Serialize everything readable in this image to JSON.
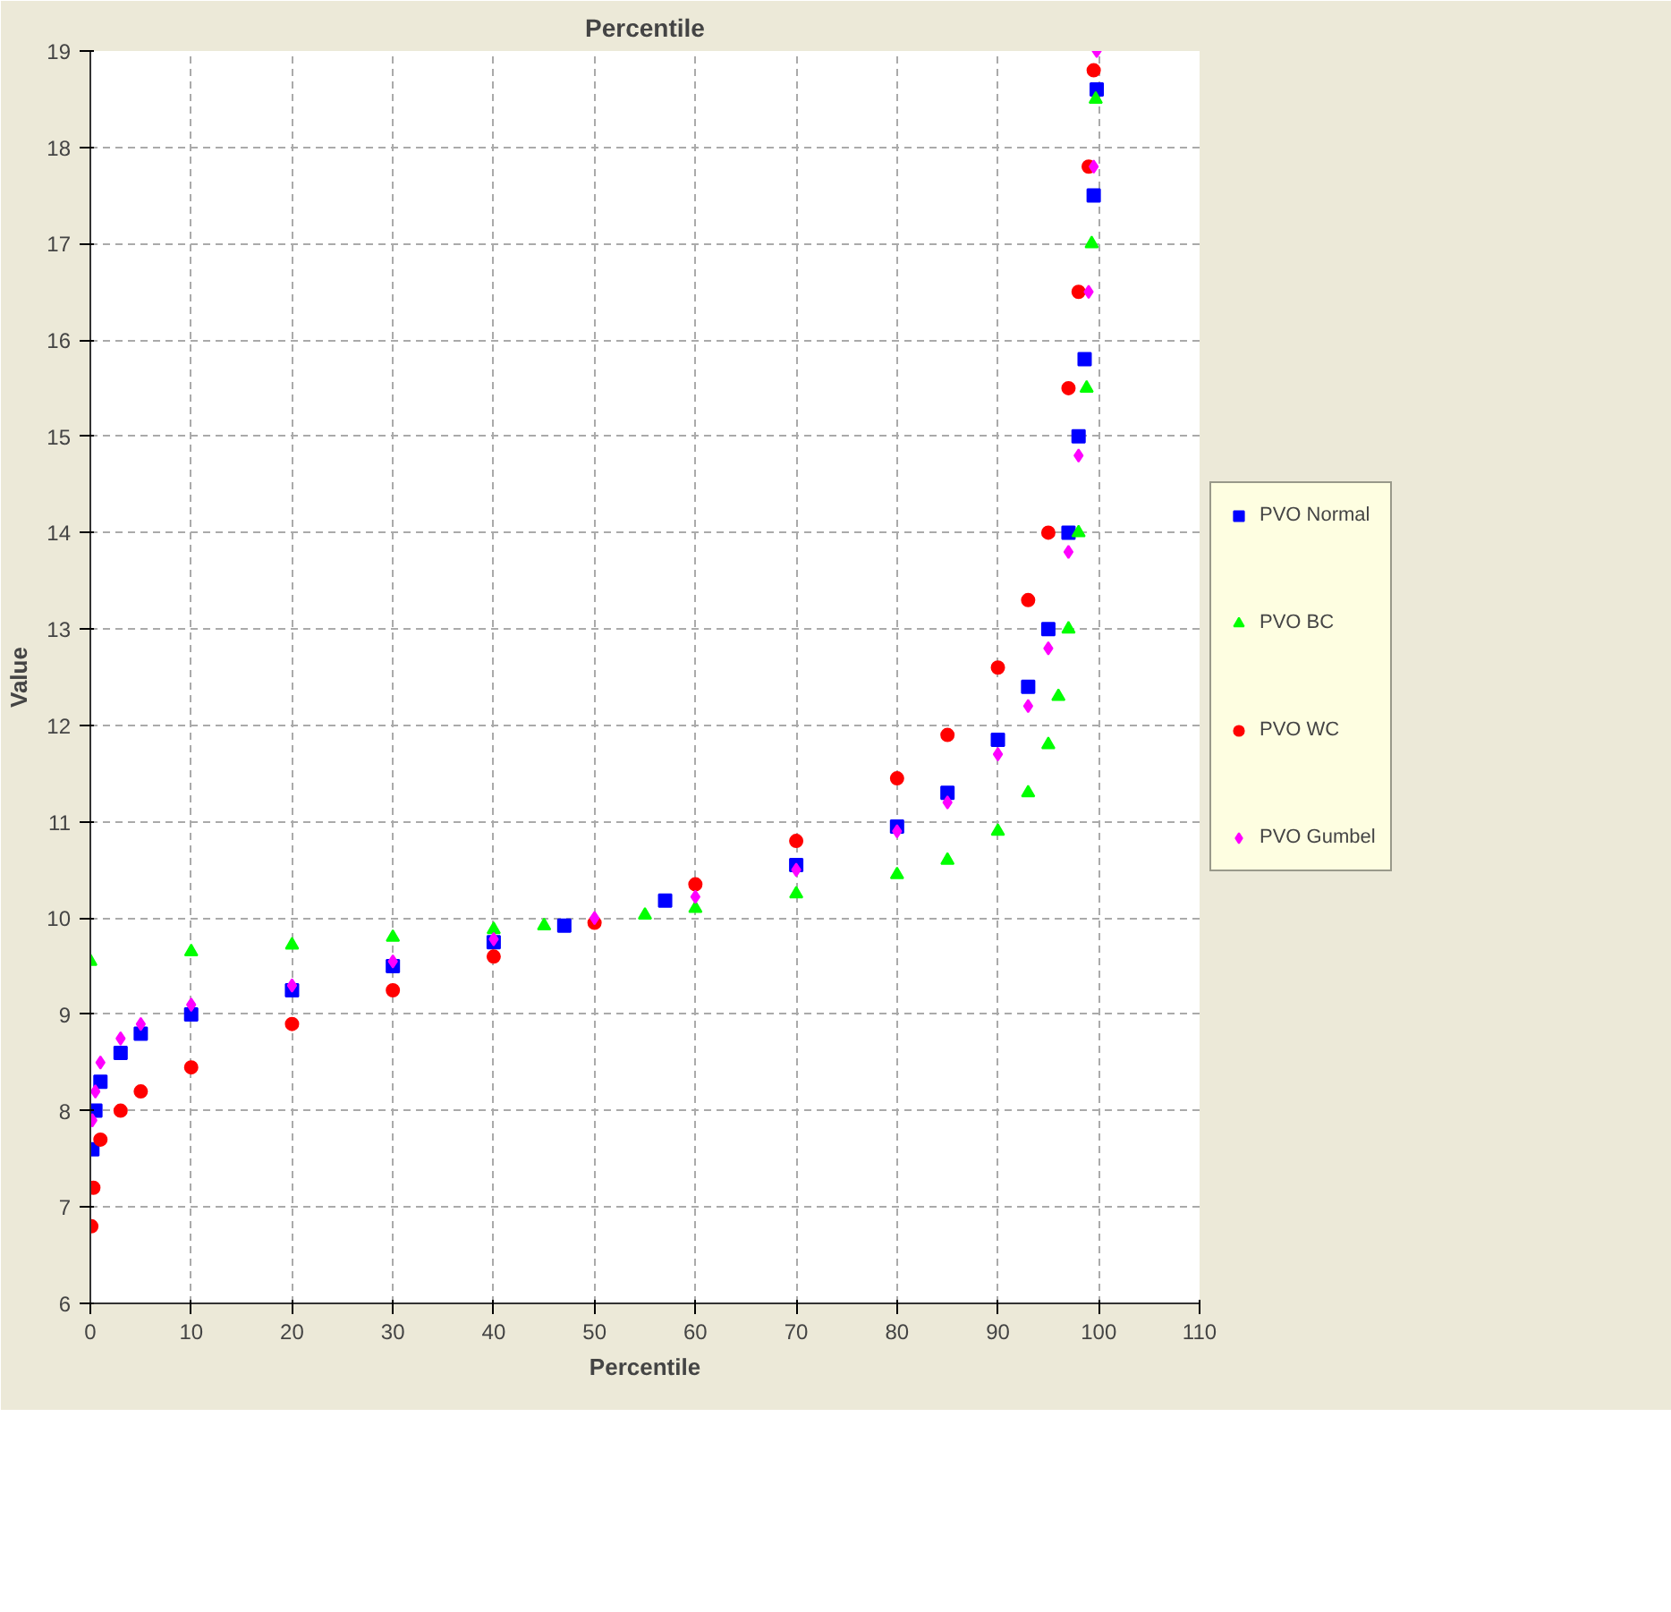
{
  "chart_data": {
    "type": "scatter",
    "title": "Percentile",
    "xlabel": "Percentile",
    "ylabel": "Value",
    "xlim": [
      0,
      110
    ],
    "ylim": [
      6,
      19
    ],
    "xticks": [
      0,
      10,
      20,
      30,
      40,
      50,
      60,
      70,
      80,
      90,
      100,
      110
    ],
    "yticks": [
      6,
      7,
      8,
      9,
      10,
      11,
      12,
      13,
      14,
      15,
      16,
      17,
      18,
      19
    ],
    "grid": true,
    "legend": "right",
    "series": [
      {
        "name": "PVO Normal",
        "color": "#0000ff",
        "marker": "square",
        "x": [
          0.2,
          0.5,
          1,
          3,
          5,
          10,
          20,
          30,
          40,
          47,
          57,
          70,
          80,
          85,
          90,
          93,
          95,
          97,
          98,
          98.6,
          99.5,
          99.8
        ],
        "values": [
          7.6,
          8.0,
          8.3,
          8.6,
          8.8,
          9.0,
          9.25,
          9.5,
          9.75,
          9.92,
          10.18,
          10.55,
          10.95,
          11.3,
          11.85,
          12.4,
          13.0,
          14.0,
          15.0,
          15.8,
          17.5,
          18.6
        ]
      },
      {
        "name": "PVO BC",
        "color": "#00ff00",
        "marker": "triangle",
        "x": [
          0,
          10,
          20,
          30,
          40,
          45,
          55,
          60,
          70,
          80,
          85,
          90,
          93,
          95,
          96,
          97,
          98,
          98.8,
          99.3,
          99.7
        ],
        "values": [
          9.55,
          9.65,
          9.72,
          9.8,
          9.88,
          9.92,
          10.03,
          10.1,
          10.25,
          10.45,
          10.6,
          10.9,
          11.3,
          11.8,
          12.3,
          13.0,
          14.0,
          15.5,
          17.0,
          18.5
        ]
      },
      {
        "name": "PVO WC",
        "color": "#ff0000",
        "marker": "circle",
        "x": [
          0.1,
          0.3,
          1,
          3,
          5,
          10,
          20,
          30,
          40,
          50,
          60,
          70,
          80,
          85,
          90,
          93,
          95,
          97,
          98,
          99,
          99.5
        ],
        "values": [
          6.8,
          7.2,
          7.7,
          8.0,
          8.2,
          8.45,
          8.9,
          9.25,
          9.6,
          9.95,
          10.35,
          10.8,
          11.45,
          11.9,
          12.6,
          13.3,
          14.0,
          15.5,
          16.5,
          17.8,
          18.8
        ]
      },
      {
        "name": "PVO Gumbel",
        "color": "#ff00ff",
        "marker": "diamond",
        "x": [
          0.2,
          0.5,
          1,
          3,
          5,
          10,
          20,
          30,
          40,
          50,
          60,
          70,
          80,
          85,
          90,
          93,
          95,
          97,
          98,
          99,
          99.5,
          99.8
        ],
        "values": [
          7.9,
          8.2,
          8.5,
          8.75,
          8.9,
          9.1,
          9.3,
          9.55,
          9.78,
          10.0,
          10.22,
          10.5,
          10.9,
          11.2,
          11.7,
          12.2,
          12.8,
          13.8,
          14.8,
          16.5,
          17.8,
          19.0
        ]
      }
    ]
  }
}
